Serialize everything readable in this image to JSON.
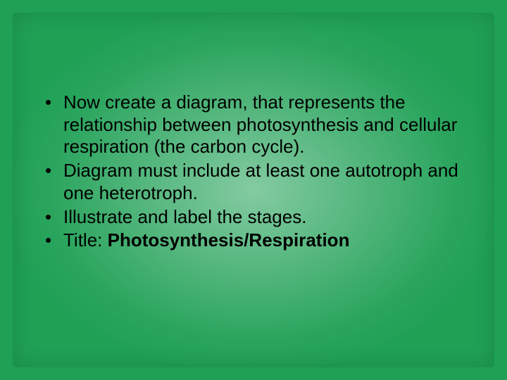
{
  "slide": {
    "background_color": "#1fa055",
    "glow_color": "#ffffff",
    "text_color": "#000000",
    "font_family": "Arial",
    "font_size_pt": 20,
    "bullets": [
      {
        "text": "Now create a diagram, that represents the relationship between photosynthesis and cellular respiration (the carbon cycle).",
        "bold_run": null
      },
      {
        "text": "Diagram must include at least one autotroph and one heterotroph.",
        "bold_run": null
      },
      {
        "text": "Illustrate and label the stages.",
        "bold_run": null
      },
      {
        "text_prefix": "Title: ",
        "bold_run": "Photosynthesis/Respiration"
      }
    ]
  }
}
